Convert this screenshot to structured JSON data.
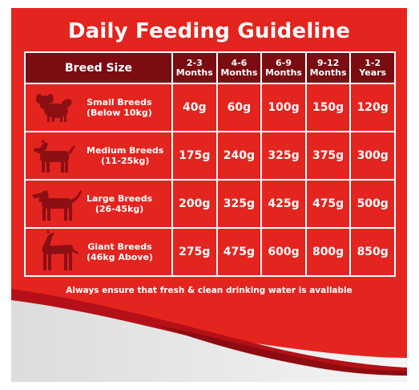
{
  "title": "Daily Feeding Guideline",
  "table": {
    "breed_header": "Breed Size",
    "age_headers": [
      {
        "line1": "2-3",
        "line2": "Months"
      },
      {
        "line1": "4-6",
        "line2": "Months"
      },
      {
        "line1": "6-9",
        "line2": "Months"
      },
      {
        "line1": "9-12",
        "line2": "Months"
      },
      {
        "line1": "1-2",
        "line2": "Years"
      }
    ],
    "rows": [
      {
        "icon": "small-dog-icon",
        "name": "Small Breeds",
        "range": "(Below 10kg)",
        "values": [
          "40g",
          "60g",
          "100g",
          "150g",
          "120g"
        ]
      },
      {
        "icon": "medium-dog-icon",
        "name": "Medium Breeds",
        "range": "(11-25kg)",
        "values": [
          "175g",
          "240g",
          "325g",
          "375g",
          "300g"
        ]
      },
      {
        "icon": "large-dog-icon",
        "name": "Large Breeds",
        "range": "(26-45kg)",
        "values": [
          "200g",
          "325g",
          "425g",
          "475g",
          "500g"
        ]
      },
      {
        "icon": "giant-dog-icon",
        "name": "Giant Breeds",
        "range": "(46kg Above)",
        "values": [
          "275g",
          "475g",
          "600g",
          "800g",
          "850g"
        ]
      }
    ]
  },
  "note": "Always ensure that fresh & clean drinking water is available",
  "colors": {
    "background_red": "#e4241f",
    "header_dark_red": "#7a0c12",
    "dog_silhouette": "#8c0f14",
    "text": "#ffffff",
    "wave_grey": "#e9e9e9"
  }
}
